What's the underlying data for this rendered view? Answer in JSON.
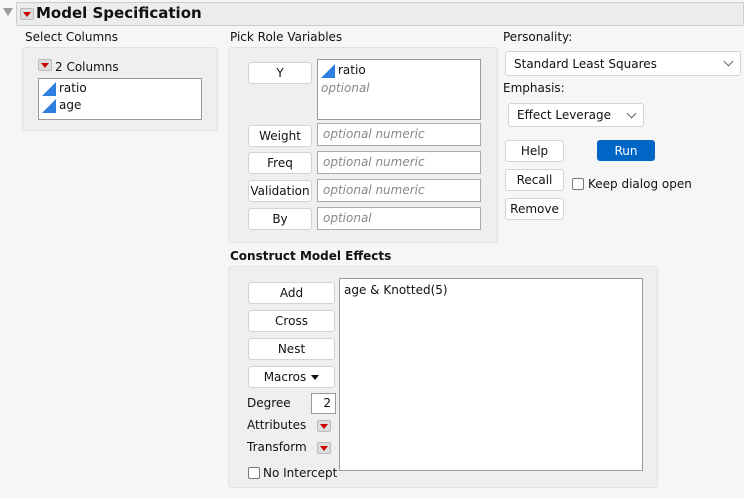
{
  "header": {
    "title": "Model Specification"
  },
  "select_columns": {
    "label": "Select Columns",
    "count_label": "2 Columns",
    "columns": [
      "ratio",
      "age"
    ]
  },
  "pick_roles": {
    "label": "Pick Role Variables",
    "y": {
      "button": "Y",
      "value": "ratio",
      "placeholder": "optional"
    },
    "weight": {
      "button": "Weight",
      "placeholder": "optional numeric"
    },
    "freq": {
      "button": "Freq",
      "placeholder": "optional numeric"
    },
    "validation": {
      "button": "Validation",
      "placeholder": "optional numeric"
    },
    "by": {
      "button": "By",
      "placeholder": "optional"
    }
  },
  "personality": {
    "label": "Personality:",
    "value": "Standard Least Squares"
  },
  "emphasis": {
    "label": "Emphasis:",
    "value": "Effect Leverage"
  },
  "actions": {
    "help": "Help",
    "run": "Run",
    "recall": "Recall",
    "keep_open": "Keep dialog open",
    "keep_open_checked": false,
    "remove": "Remove"
  },
  "effects": {
    "label": "Construct Model Effects",
    "add": "Add",
    "cross": "Cross",
    "nest": "Nest",
    "macros": "Macros",
    "degree_label": "Degree",
    "degree": "2",
    "attributes": "Attributes",
    "transform": "Transform",
    "no_intercept": "No Intercept",
    "no_intercept_checked": false,
    "items": [
      "age & Knotted(5)"
    ]
  },
  "colors": {
    "accent": "#0066c6",
    "hotspot": "#cc0000",
    "continuous_icon": "#2f7fe0"
  }
}
